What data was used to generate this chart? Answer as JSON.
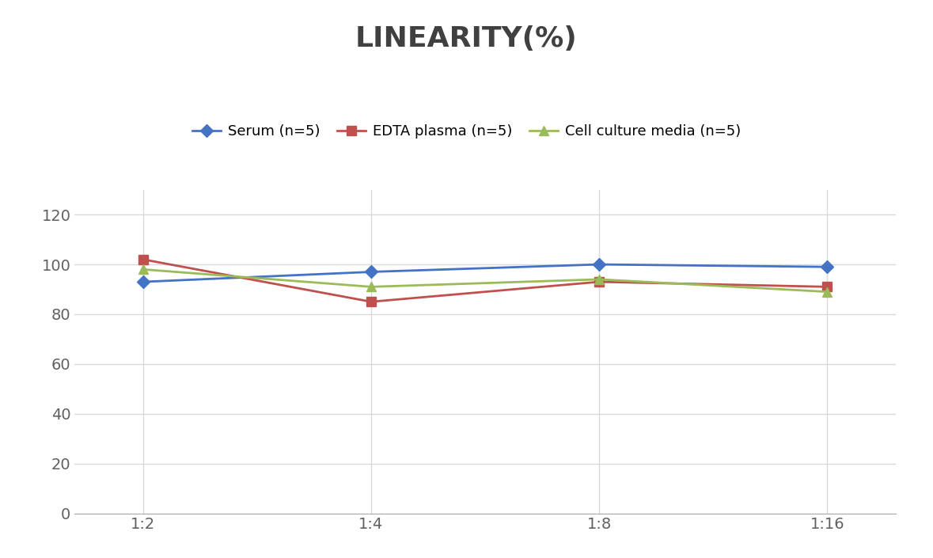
{
  "title": "LINEARITY(%)",
  "x_labels": [
    "1:2",
    "1:4",
    "1:8",
    "1:16"
  ],
  "x_positions": [
    0,
    1,
    2,
    3
  ],
  "series": [
    {
      "label": "Serum (n=5)",
      "values": [
        93,
        97,
        100,
        99
      ],
      "color": "#4472C4",
      "marker": "D",
      "markersize": 8,
      "linewidth": 2
    },
    {
      "label": "EDTA plasma (n=5)",
      "values": [
        102,
        85,
        93,
        91
      ],
      "color": "#C0504D",
      "marker": "s",
      "markersize": 8,
      "linewidth": 2
    },
    {
      "label": "Cell culture media (n=5)",
      "values": [
        98,
        91,
        94,
        89
      ],
      "color": "#9BBB59",
      "marker": "^",
      "markersize": 8,
      "linewidth": 2
    }
  ],
  "ylim": [
    0,
    130
  ],
  "yticks": [
    0,
    20,
    40,
    60,
    80,
    100,
    120
  ],
  "background_color": "#ffffff",
  "grid_color": "#d9d9d9",
  "title_fontsize": 26,
  "title_color": "#404040",
  "legend_fontsize": 13,
  "tick_fontsize": 14,
  "tick_color": "#606060"
}
